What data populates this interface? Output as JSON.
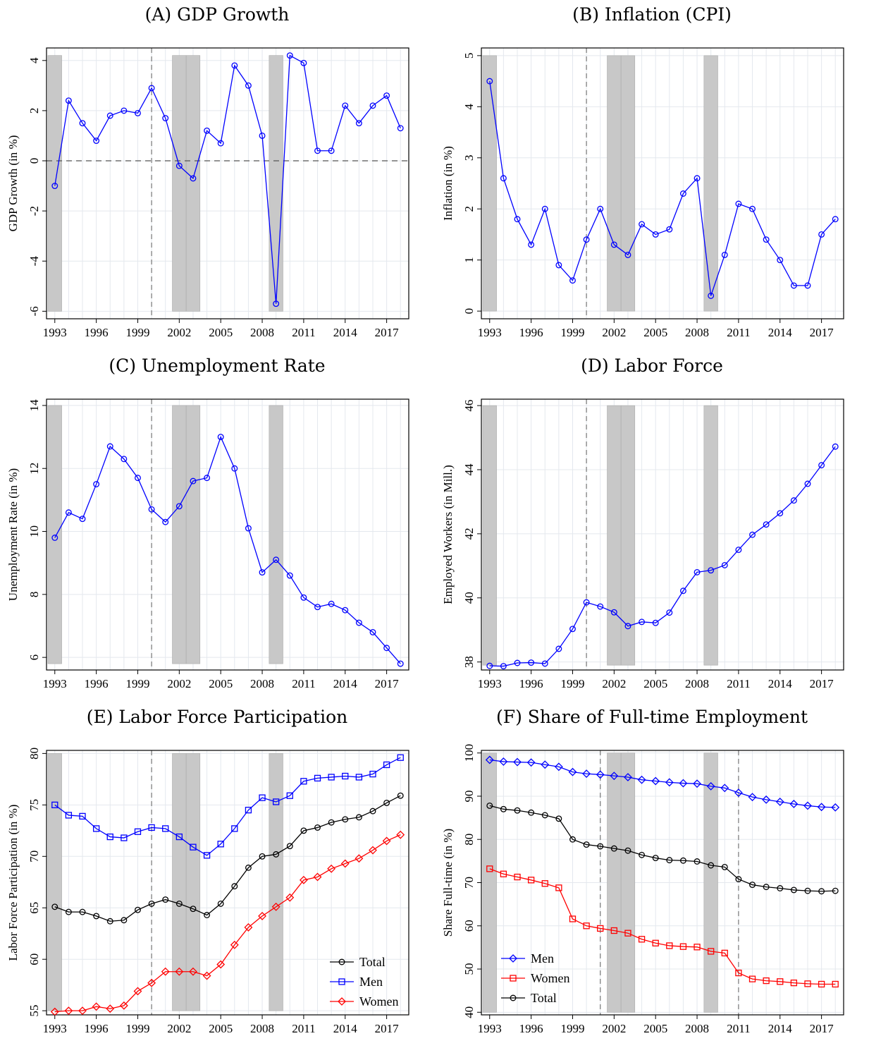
{
  "chart_data": [
    {
      "id": "a",
      "type": "line",
      "letter": "A",
      "title": "GDP Growth",
      "ylabel": "GDP Growth (in %)",
      "ylim": [
        -6.3,
        4.5
      ],
      "yticks": [
        "-6",
        "-4",
        "-2",
        "0",
        "2",
        "4"
      ],
      "xticks": [
        "1993",
        "1996",
        "1999",
        "2002",
        "2005",
        "2008",
        "2011",
        "2014",
        "2017"
      ],
      "xlim": [
        1992.4,
        2018.6
      ],
      "recession_shading": [
        [
          1992.5,
          1993.5
        ],
        [
          2001.5,
          2002.5
        ],
        [
          2002.5,
          2003.5
        ],
        [
          2008.5,
          2009.5
        ]
      ],
      "shade_range": [
        -6.0,
        4.2
      ],
      "vlines": [
        2000.0
      ],
      "hlines": [
        0
      ],
      "legend": [],
      "grid": true,
      "x": [
        1993,
        1994,
        1995,
        1996,
        1997,
        1998,
        1999,
        2000,
        2001,
        2002,
        2003,
        2004,
        2005,
        2006,
        2007,
        2008,
        2009,
        2010,
        2011,
        2012,
        2013,
        2014,
        2015,
        2016,
        2017,
        2018
      ],
      "series": [
        {
          "marker": "circle",
          "color": "#0000ff",
          "values": [
            -1.0,
            2.4,
            1.5,
            0.8,
            1.8,
            2.0,
            1.9,
            2.9,
            1.7,
            -0.2,
            -0.7,
            1.2,
            0.7,
            3.8,
            3.0,
            1.0,
            -5.7,
            4.2,
            3.9,
            0.4,
            0.4,
            2.2,
            1.5,
            2.2,
            2.6,
            1.3
          ]
        }
      ]
    },
    {
      "id": "b",
      "type": "line",
      "letter": "B",
      "title": "Inflation (CPI)",
      "ylabel": "Inflation (in %)",
      "ylim": [
        -0.15,
        5.15
      ],
      "yticks": [
        "0",
        "1",
        "2",
        "3",
        "4",
        "5"
      ],
      "xticks": [
        "1993",
        "1996",
        "1999",
        "2002",
        "2005",
        "2008",
        "2011",
        "2014",
        "2017"
      ],
      "xlim": [
        1992.4,
        2018.6
      ],
      "recession_shading": [
        [
          1992.5,
          1993.5
        ],
        [
          2001.5,
          2002.5
        ],
        [
          2002.5,
          2003.5
        ],
        [
          2008.5,
          2009.5
        ]
      ],
      "shade_range": [
        0,
        5
      ],
      "vlines": [
        2000.0
      ],
      "hlines": [],
      "legend": [],
      "grid": true,
      "x": [
        1993,
        1994,
        1995,
        1996,
        1997,
        1998,
        1999,
        2000,
        2001,
        2002,
        2003,
        2004,
        2005,
        2006,
        2007,
        2008,
        2009,
        2010,
        2011,
        2012,
        2013,
        2014,
        2015,
        2016,
        2017,
        2018
      ],
      "series": [
        {
          "marker": "circle",
          "color": "#0000ff",
          "values": [
            4.5,
            2.6,
            1.8,
            1.3,
            2.0,
            0.9,
            0.6,
            1.4,
            2.0,
            1.3,
            1.1,
            1.7,
            1.5,
            1.6,
            2.3,
            2.6,
            0.3,
            1.1,
            2.1,
            2.0,
            1.4,
            1.0,
            0.5,
            0.5,
            1.5,
            1.8
          ]
        }
      ]
    },
    {
      "id": "c",
      "type": "line",
      "letter": "C",
      "title": "Unemployment Rate",
      "ylabel": "Unemployment Rate (in %)",
      "ylim": [
        5.6,
        14.2
      ],
      "yticks": [
        "6",
        "8",
        "10",
        "12",
        "14"
      ],
      "xticks": [
        "1993",
        "1996",
        "1999",
        "2002",
        "2005",
        "2008",
        "2011",
        "2014",
        "2017"
      ],
      "xlim": [
        1992.4,
        2018.6
      ],
      "recession_shading": [
        [
          1992.5,
          1993.5
        ],
        [
          2001.5,
          2002.5
        ],
        [
          2002.5,
          2003.5
        ],
        [
          2008.5,
          2009.5
        ]
      ],
      "shade_range": [
        5.8,
        14
      ],
      "vlines": [
        2000.0
      ],
      "hlines": [],
      "legend": [],
      "grid": true,
      "x": [
        1993,
        1994,
        1995,
        1996,
        1997,
        1998,
        1999,
        2000,
        2001,
        2002,
        2003,
        2004,
        2005,
        2006,
        2007,
        2008,
        2009,
        2010,
        2011,
        2012,
        2013,
        2014,
        2015,
        2016,
        2017,
        2018
      ],
      "series": [
        {
          "marker": "circle",
          "color": "#0000ff",
          "values": [
            9.8,
            10.6,
            10.4,
            11.5,
            12.7,
            12.3,
            11.7,
            10.7,
            10.3,
            10.8,
            11.6,
            11.7,
            13.0,
            12.0,
            10.1,
            8.7,
            9.1,
            8.6,
            7.9,
            7.6,
            7.7,
            7.5,
            7.1,
            6.8,
            6.3,
            5.8
          ]
        }
      ]
    },
    {
      "id": "d",
      "type": "line",
      "letter": "D",
      "title": "Labor Force",
      "ylabel": "Employed Workers (in Mill.)",
      "ylim": [
        37.75,
        46.2
      ],
      "yticks": [
        "38",
        "40",
        "42",
        "44",
        "46"
      ],
      "xticks": [
        "1993",
        "1996",
        "1999",
        "2002",
        "2005",
        "2008",
        "2011",
        "2014",
        "2017"
      ],
      "xlim": [
        1992.4,
        2018.6
      ],
      "recession_shading": [
        [
          1992.5,
          1993.5
        ],
        [
          2001.5,
          2002.5
        ],
        [
          2002.5,
          2003.5
        ],
        [
          2008.5,
          2009.5
        ]
      ],
      "shade_range": [
        37.9,
        46
      ],
      "vlines": [
        2000.0
      ],
      "hlines": [],
      "legend": [],
      "grid": true,
      "x": [
        1993,
        1994,
        1995,
        1996,
        1997,
        1998,
        1999,
        2000,
        2001,
        2002,
        2003,
        2004,
        2005,
        2006,
        2007,
        2008,
        2009,
        2010,
        2011,
        2012,
        2013,
        2014,
        2015,
        2016,
        2017,
        2018
      ],
      "series": [
        {
          "marker": "circle",
          "color": "#0000ff",
          "values": [
            37.88,
            37.87,
            37.97,
            37.98,
            37.95,
            38.41,
            39.03,
            39.86,
            39.73,
            39.55,
            39.12,
            39.25,
            39.22,
            39.54,
            40.22,
            40.8,
            40.86,
            41.02,
            41.5,
            41.97,
            42.29,
            42.64,
            43.04,
            43.56,
            44.14,
            44.72
          ]
        }
      ]
    },
    {
      "id": "e",
      "type": "line",
      "letter": "E",
      "title": "Labor Force Participation",
      "ylabel": "Labor Force Participation (in %)",
      "ylim": [
        54.6,
        80.3
      ],
      "yticks": [
        "55",
        "60",
        "65",
        "70",
        "75",
        "80"
      ],
      "xticks": [
        "1993",
        "1996",
        "1999",
        "2002",
        "2005",
        "2008",
        "2011",
        "2014",
        "2017"
      ],
      "xlim": [
        1992.4,
        2018.6
      ],
      "recession_shading": [
        [
          1992.5,
          1993.5
        ],
        [
          2001.5,
          2002.5
        ],
        [
          2002.5,
          2003.5
        ],
        [
          2008.5,
          2009.5
        ]
      ],
      "shade_range": [
        55,
        80
      ],
      "vlines": [
        2000.0
      ],
      "hlines": [],
      "legend": [
        "Total",
        "Men",
        "Women"
      ],
      "legend_position": "bottom-right",
      "grid": true,
      "x": [
        1993,
        1994,
        1995,
        1996,
        1997,
        1998,
        1999,
        2000,
        2001,
        2002,
        2003,
        2004,
        2005,
        2006,
        2007,
        2008,
        2009,
        2010,
        2011,
        2012,
        2013,
        2014,
        2015,
        2016,
        2017,
        2018
      ],
      "series": [
        {
          "name": "Total",
          "marker": "circle",
          "color": "#000000",
          "values": [
            65.1,
            64.6,
            64.6,
            64.2,
            63.7,
            63.8,
            64.8,
            65.4,
            65.8,
            65.4,
            64.9,
            64.3,
            65.4,
            67.1,
            68.9,
            70.0,
            70.2,
            71.0,
            72.5,
            72.8,
            73.3,
            73.6,
            73.8,
            74.4,
            75.2,
            75.9
          ]
        },
        {
          "name": "Men",
          "marker": "square",
          "color": "#0000ff",
          "values": [
            75.0,
            74.0,
            73.9,
            72.7,
            71.9,
            71.8,
            72.4,
            72.8,
            72.7,
            71.9,
            70.9,
            70.1,
            71.2,
            72.7,
            74.5,
            75.7,
            75.3,
            75.9,
            77.3,
            77.6,
            77.7,
            77.8,
            77.7,
            78.0,
            78.9,
            79.6
          ]
        },
        {
          "name": "Women",
          "marker": "diamond",
          "color": "#ff0000",
          "values": [
            54.9,
            55.0,
            55.0,
            55.4,
            55.2,
            55.5,
            56.9,
            57.7,
            58.8,
            58.8,
            58.8,
            58.4,
            59.5,
            61.4,
            63.1,
            64.2,
            65.1,
            66.0,
            67.7,
            68.0,
            68.8,
            69.3,
            69.8,
            70.6,
            71.5,
            72.1
          ]
        }
      ]
    },
    {
      "id": "f",
      "type": "line",
      "letter": "F",
      "title": "Share of Full-time Employment",
      "ylabel": "Share Full-time (in %)",
      "ylim": [
        39.4,
        100.6
      ],
      "yticks": [
        "40",
        "50",
        "60",
        "70",
        "80",
        "90",
        "100"
      ],
      "xticks": [
        "1993",
        "1996",
        "1999",
        "2002",
        "2005",
        "2008",
        "2011",
        "2014",
        "2017"
      ],
      "xlim": [
        1992.4,
        2018.6
      ],
      "recession_shading": [
        [
          1992.5,
          1993.5
        ],
        [
          2001.5,
          2002.5
        ],
        [
          2002.5,
          2003.5
        ],
        [
          2008.5,
          2009.5
        ]
      ],
      "shade_range": [
        40,
        100
      ],
      "vlines": [
        2001.0,
        2011.0
      ],
      "hlines": [],
      "legend": [
        "Men",
        "Women",
        "Total"
      ],
      "legend_position": "bottom-left",
      "grid": true,
      "x": [
        1993,
        1994,
        1995,
        1996,
        1997,
        1998,
        1999,
        2000,
        2001,
        2002,
        2003,
        2004,
        2005,
        2006,
        2007,
        2008,
        2009,
        2010,
        2011,
        2012,
        2013,
        2014,
        2015,
        2016,
        2017,
        2018
      ],
      "series": [
        {
          "name": "Men",
          "marker": "diamond",
          "color": "#0000ff",
          "values": [
            98.4,
            98.0,
            97.9,
            97.8,
            97.3,
            96.8,
            95.6,
            95.2,
            95.0,
            94.7,
            94.4,
            93.8,
            93.5,
            93.2,
            93.0,
            92.9,
            92.3,
            91.9,
            90.8,
            89.8,
            89.2,
            88.7,
            88.2,
            87.8,
            87.5,
            87.4
          ]
        },
        {
          "name": "Women",
          "marker": "square",
          "color": "#ff0000",
          "values": [
            73.2,
            72.0,
            71.3,
            70.6,
            69.8,
            68.8,
            61.6,
            60.0,
            59.4,
            58.9,
            58.3,
            56.9,
            56.0,
            55.4,
            55.2,
            55.1,
            54.1,
            53.7,
            49.1,
            47.7,
            47.3,
            47.1,
            46.8,
            46.6,
            46.5,
            46.5
          ]
        },
        {
          "name": "Total",
          "marker": "circle",
          "color": "#000000",
          "values": [
            87.8,
            87.0,
            86.7,
            86.2,
            85.6,
            84.8,
            80.0,
            78.8,
            78.4,
            77.9,
            77.4,
            76.4,
            75.7,
            75.2,
            75.1,
            74.9,
            74.0,
            73.6,
            70.8,
            69.5,
            69.0,
            68.7,
            68.3,
            68.1,
            68.0,
            68.1
          ]
        }
      ]
    }
  ]
}
